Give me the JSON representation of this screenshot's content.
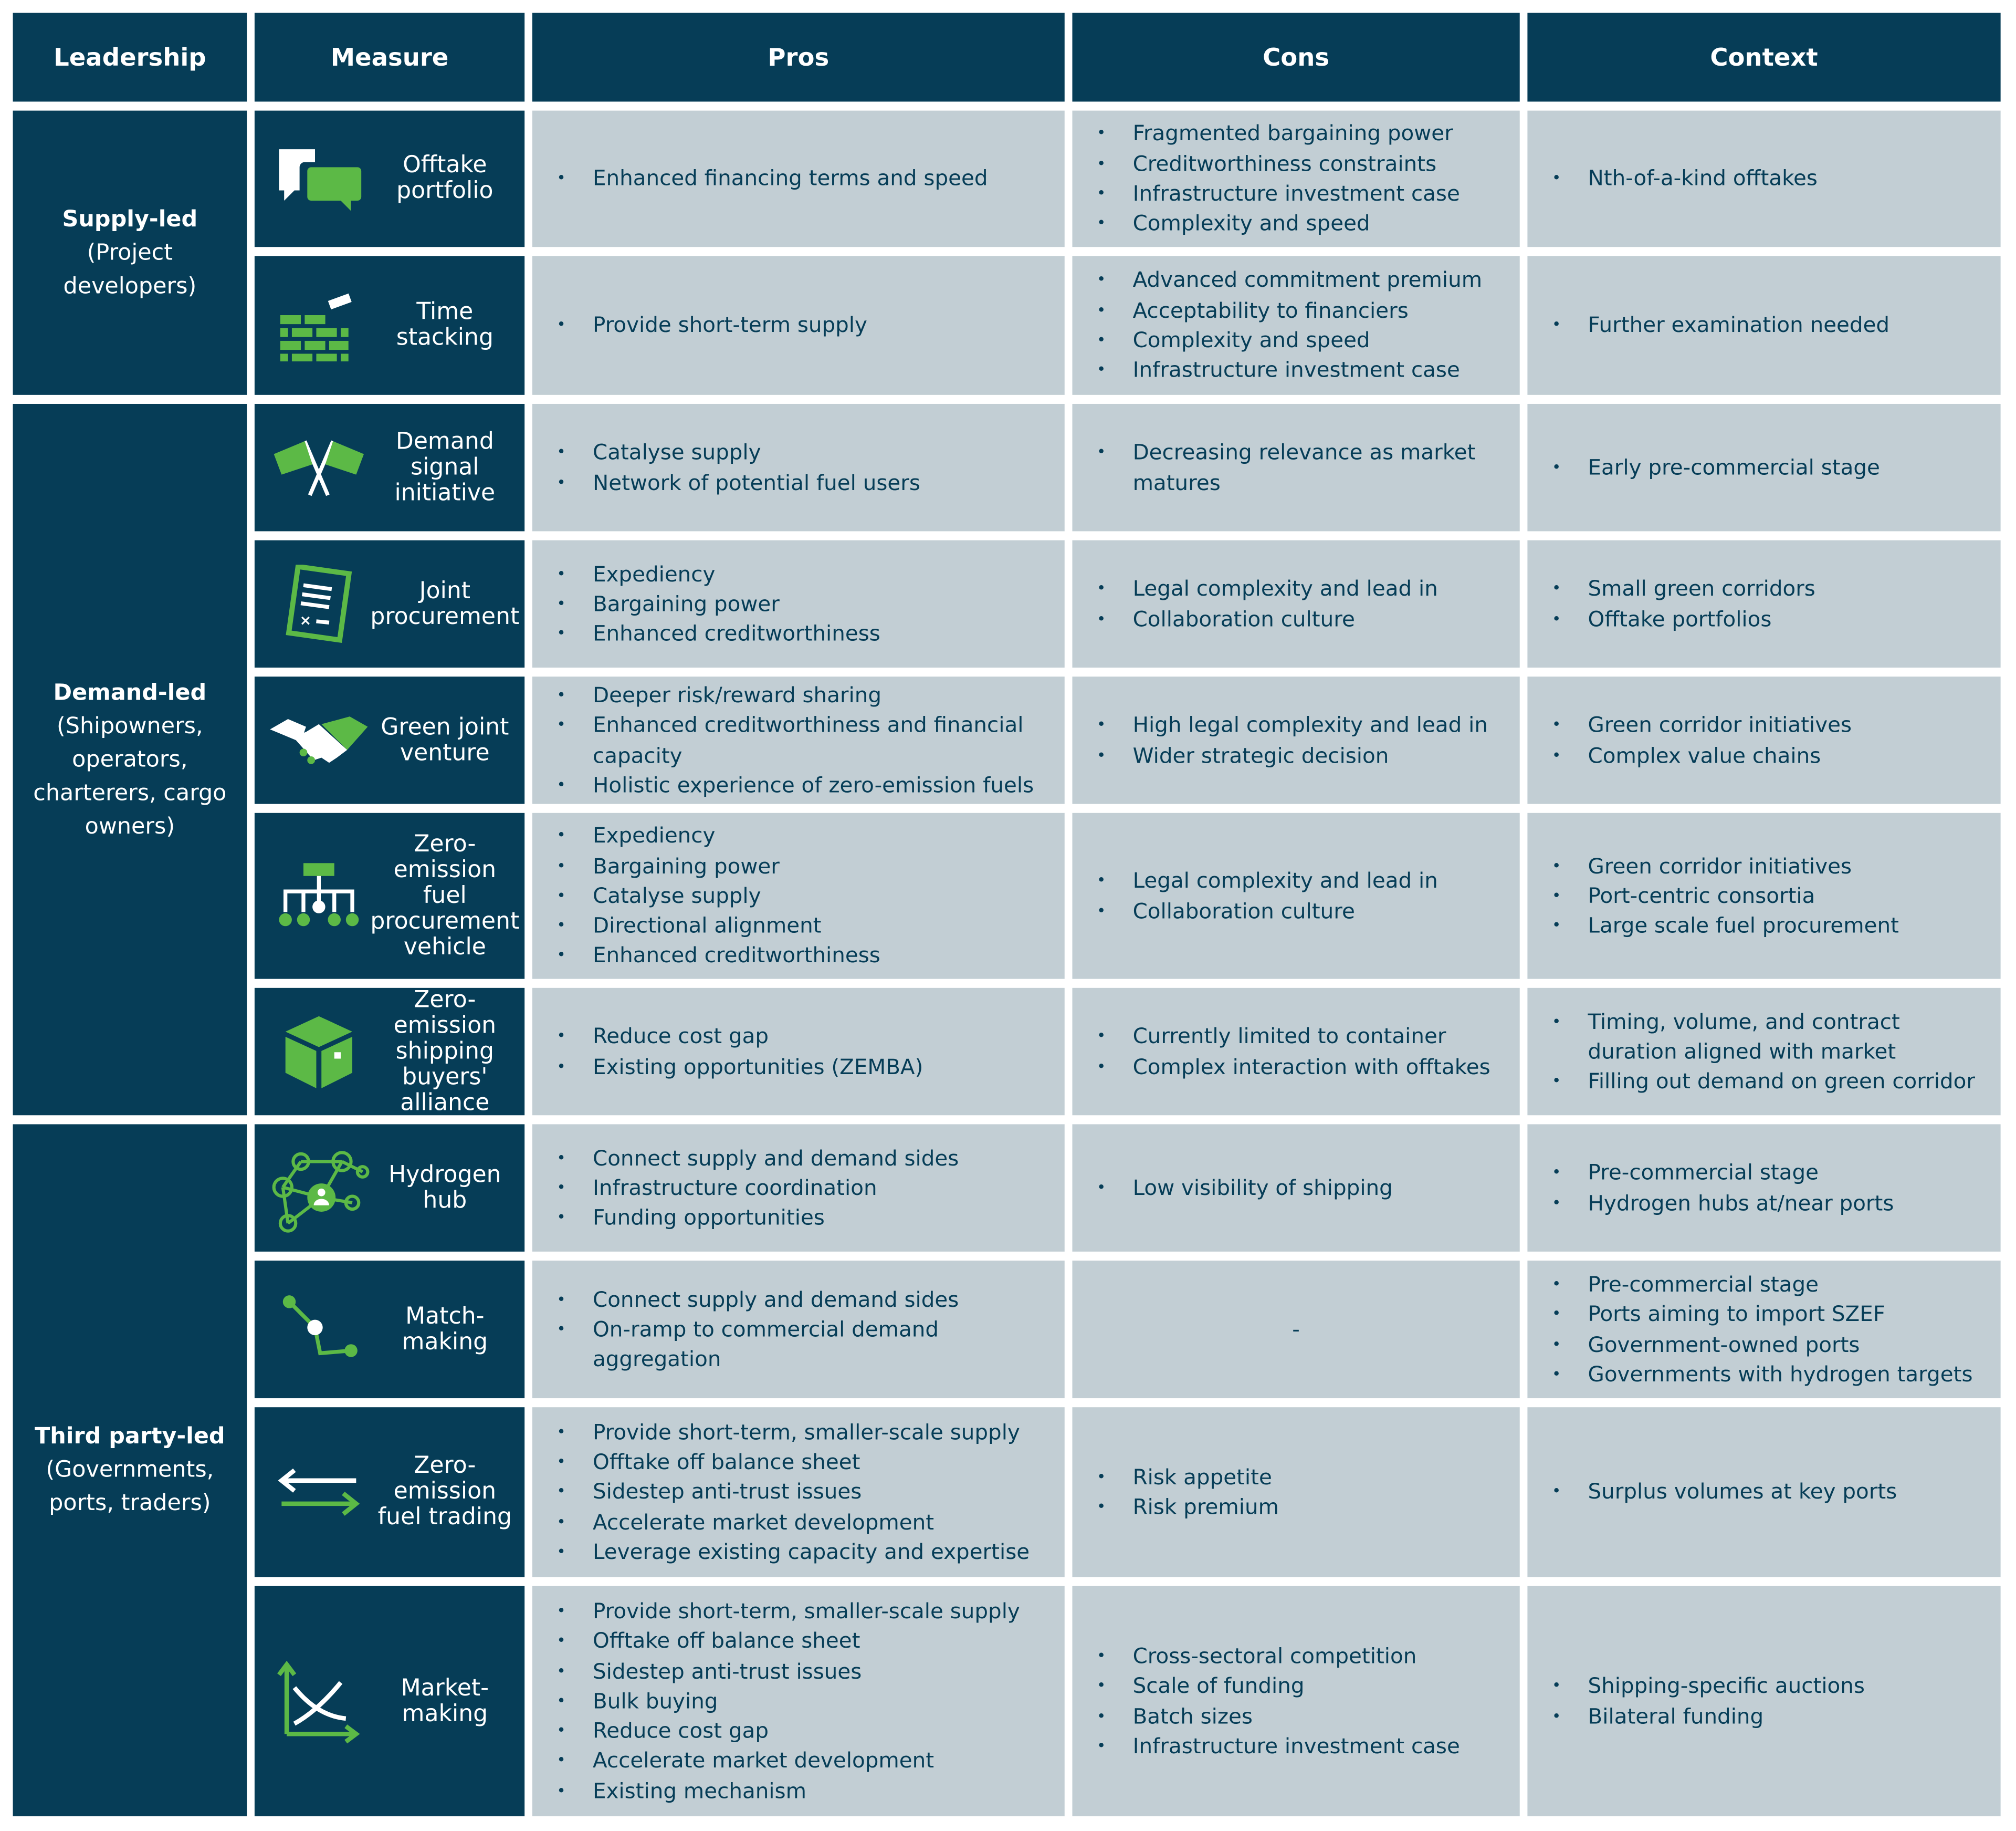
{
  "headers": [
    "Leadership",
    "Measure",
    "Pros",
    "Cons",
    "Context"
  ],
  "colors": {
    "navy": "#063d57",
    "green": "#5cb946",
    "gray": "#c2ced4"
  },
  "groups": [
    {
      "title": "Supply-led",
      "subtitle": "(Project developers)",
      "rows": 2
    },
    {
      "title": "Demand-led",
      "subtitle": "(Shipowners, operators, charterers, cargo owners)",
      "rows": 5
    },
    {
      "title": "Third party-led",
      "subtitle": "(Governments, ports, traders)",
      "rows": 4
    }
  ],
  "rows": [
    {
      "measure": "Offtake portfolio",
      "icon": "speech-bubbles-icon",
      "pros": [
        "Enhanced financing terms and speed"
      ],
      "cons": [
        "Fragmented bargaining power",
        "Creditworthiness constraints",
        "Infrastructure investment case",
        "Complexity and speed"
      ],
      "context": [
        "Nth-of-a-kind offtakes"
      ]
    },
    {
      "measure": "Time stacking",
      "icon": "brick-wall-icon",
      "pros": [
        "Provide short-term supply"
      ],
      "cons": [
        "Advanced commitment premium",
        "Acceptability to financiers",
        "Complexity and speed",
        "Infrastructure investment case"
      ],
      "context": [
        "Further examination needed"
      ]
    },
    {
      "measure": "Demand signal initiative",
      "icon": "crossed-flags-icon",
      "pros": [
        "Catalyse supply",
        "Network of potential fuel users"
      ],
      "cons": [
        "Decreasing relevance as market matures"
      ],
      "context": [
        "Early pre-commercial stage"
      ]
    },
    {
      "measure": "Joint procurement",
      "icon": "contract-document-icon",
      "pros": [
        "Expediency",
        "Bargaining power",
        "Enhanced creditworthiness"
      ],
      "cons": [
        "Legal complexity and lead in",
        "Collaboration culture"
      ],
      "context": [
        "Small green corridors",
        "Offtake portfolios"
      ]
    },
    {
      "measure": "Green joint venture",
      "icon": "handshake-icon",
      "pros": [
        "Deeper risk/reward sharing",
        "Enhanced creditworthiness and financial capacity",
        "Holistic experience of zero-emission fuels"
      ],
      "cons": [
        "High legal complexity and lead in",
        "Wider strategic decision"
      ],
      "context": [
        "Green corridor initiatives",
        "Complex value chains"
      ]
    },
    {
      "measure": "Zero-emission fuel procurement vehicle",
      "icon": "org-chart-icon",
      "pros": [
        "Expediency",
        "Bargaining power",
        "Catalyse supply",
        "Directional alignment",
        "Enhanced creditworthiness"
      ],
      "cons": [
        "Legal complexity and lead in",
        "Collaboration culture"
      ],
      "context": [
        "Green corridor initiatives",
        "Port-centric consortia",
        "Large scale fuel procurement"
      ]
    },
    {
      "measure": "Zero-emission shipping buyers' alliance",
      "icon": "box-icon",
      "pros": [
        "Reduce cost gap",
        "Existing opportunities (ZEMBA)"
      ],
      "cons": [
        "Currently limited to container",
        "Complex interaction with offtakes"
      ],
      "context": [
        "Timing, volume, and contract duration aligned with market",
        "Filling out demand on green corridor"
      ]
    },
    {
      "measure": "Hydrogen hub",
      "icon": "network-hub-icon",
      "pros": [
        "Connect supply and demand sides",
        "Infrastructure coordination",
        "Funding opportunities"
      ],
      "cons": [
        "Low visibility of shipping"
      ],
      "context": [
        "Pre-commercial stage",
        "Hydrogen hubs at/near ports"
      ]
    },
    {
      "measure": "Match-making",
      "icon": "connected-path-icon",
      "pros": [
        "Connect supply and demand sides",
        "On-ramp to commercial demand aggregation"
      ],
      "cons_dash": "-",
      "context": [
        "Pre-commercial stage",
        "Ports aiming to import SZEF",
        "Government-owned ports",
        "Governments with hydrogen targets"
      ]
    },
    {
      "measure": "Zero-emission fuel trading",
      "icon": "exchange-arrows-icon",
      "pros": [
        "Provide short-term, smaller-scale supply",
        "Offtake off balance sheet",
        "Sidestep anti-trust issues",
        "Accelerate market development",
        "Leverage existing capacity and expertise"
      ],
      "cons": [
        "Risk appetite",
        "Risk premium"
      ],
      "context": [
        "Surplus volumes at key ports"
      ]
    },
    {
      "measure": "Market-making",
      "icon": "supply-demand-chart-icon",
      "pros": [
        "Provide short-term, smaller-scale supply",
        "Offtake off balance sheet",
        "Sidestep anti-trust issues",
        "Bulk buying",
        "Reduce cost gap",
        "Accelerate market development",
        "Existing mechanism"
      ],
      "cons": [
        "Cross-sectoral competition",
        "Scale of funding",
        "Batch sizes",
        "Infrastructure investment case"
      ],
      "context": [
        "Shipping-specific auctions",
        "Bilateral funding"
      ]
    }
  ]
}
